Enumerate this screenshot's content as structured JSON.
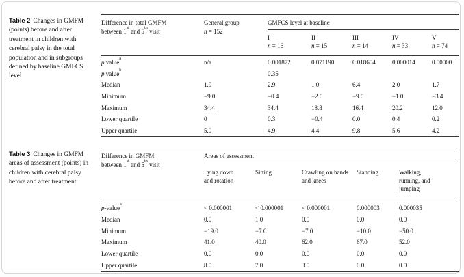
{
  "table2": {
    "caption_label": "Table 2",
    "caption_text": "Changes in GMFM (points) before and after treatment in children with cerebral palsy in the total population and in subgroups defined by baseline GMFCS level",
    "header": {
      "stub_line1": "Difference in total GMFM",
      "stub_line2": [
        {
          "t": "between 1"
        },
        {
          "t": "st",
          "sup": true
        },
        {
          "t": " and 5"
        },
        {
          "t": "th",
          "sup": true
        },
        {
          "t": " visit"
        }
      ],
      "general_line1": "General group",
      "general_line2": [
        {
          "t": "n",
          "i": true
        },
        {
          "t": " = 152"
        }
      ],
      "spanner": "GMFCS level at baseline",
      "levels": [
        {
          "label": "I",
          "n": [
            {
              "t": "n",
              "i": true
            },
            {
              "t": " = 16"
            }
          ]
        },
        {
          "label": "II",
          "n": [
            {
              "t": "n",
              "i": true
            },
            {
              "t": " = 15"
            }
          ]
        },
        {
          "label": "III",
          "n": [
            {
              "t": "n",
              "i": true
            },
            {
              "t": " = 14"
            }
          ]
        },
        {
          "label": "IV",
          "n": [
            {
              "t": "n",
              "i": true
            },
            {
              "t": " = 33"
            }
          ]
        },
        {
          "label": "V",
          "n": [
            {
              "t": "n",
              "i": true
            },
            {
              "t": " = 74"
            }
          ]
        }
      ]
    },
    "rows": [
      {
        "label": [
          {
            "t": "p",
            "i": true
          },
          {
            "t": " value"
          },
          {
            "t": "a",
            "sup": true
          }
        ],
        "values": [
          "n/a",
          "0.001872",
          "0.071190",
          "0.018604",
          "0.000014",
          "0.00000"
        ]
      },
      {
        "label": [
          {
            "t": "p",
            "i": true
          },
          {
            "t": " value"
          },
          {
            "t": "b",
            "sup": true
          }
        ],
        "values": [
          "",
          "0.35",
          "",
          "",
          "",
          ""
        ]
      },
      {
        "label": [
          {
            "t": "Median"
          }
        ],
        "values": [
          "1.9",
          "2.9",
          "1.0",
          "6.4",
          "2.0",
          "1.7"
        ]
      },
      {
        "label": [
          {
            "t": "Minimum"
          }
        ],
        "values": [
          "−9.0",
          "−0.4",
          "−2.0",
          "−9.0",
          "−1.0",
          "−3.4"
        ]
      },
      {
        "label": [
          {
            "t": "Maximum"
          }
        ],
        "values": [
          "34.4",
          "34.4",
          "18.8",
          "16.4",
          "20.2",
          "12.0"
        ]
      },
      {
        "label": [
          {
            "t": "Lower quartile"
          }
        ],
        "values": [
          "0",
          "0.3",
          "−0.4",
          "0.0",
          "0.4",
          "0.2"
        ]
      },
      {
        "label": [
          {
            "t": "Upper quartile"
          }
        ],
        "values": [
          "5.0",
          "4.9",
          "4.4",
          "9.8",
          "5.6",
          "4.2"
        ]
      }
    ]
  },
  "table3": {
    "caption_label": "Table 3",
    "caption_text": "Changes in GMFM areas of assessment (points) in children with cerebral palsy before and after treatment",
    "header": {
      "stub_line1": "Difference in GMFM",
      "stub_line2": [
        {
          "t": "between 1"
        },
        {
          "t": "st",
          "sup": true
        },
        {
          "t": " and 5"
        },
        {
          "t": "th",
          "sup": true
        },
        {
          "t": " visit"
        }
      ],
      "spanner": "Areas of assessment",
      "areas": [
        "Lying down and rotation",
        "Sitting",
        "Crawling on hands and knees",
        "Standing",
        "Walking, running, and jumping"
      ]
    },
    "rows": [
      {
        "label": [
          {
            "t": "p",
            "i": true
          },
          {
            "t": "-value"
          },
          {
            "t": "a",
            "sup": true
          }
        ],
        "values": [
          "< 0.000001",
          "< 0.000001",
          "< 0.000001",
          "0.000003",
          "0.000035"
        ]
      },
      {
        "label": [
          {
            "t": "Median"
          }
        ],
        "values": [
          "0.0",
          "1.0",
          "0.0",
          "0.0",
          "0.0"
        ]
      },
      {
        "label": [
          {
            "t": "Minimum"
          }
        ],
        "values": [
          "−19.0",
          "−7.0",
          "−7.0",
          "−10.0",
          "−50.0"
        ]
      },
      {
        "label": [
          {
            "t": "Maximum"
          }
        ],
        "values": [
          "41.0",
          "40.0",
          "62.0",
          "67.0",
          "52.0"
        ]
      },
      {
        "label": [
          {
            "t": "Lower quartile"
          }
        ],
        "values": [
          "0.0",
          "0.0",
          "0.0",
          "0.0",
          "0.0"
        ]
      },
      {
        "label": [
          {
            "t": "Upper quartile"
          }
        ],
        "values": [
          "8.0",
          "7.0",
          "3.0",
          "0.0",
          "0.0"
        ]
      }
    ]
  }
}
